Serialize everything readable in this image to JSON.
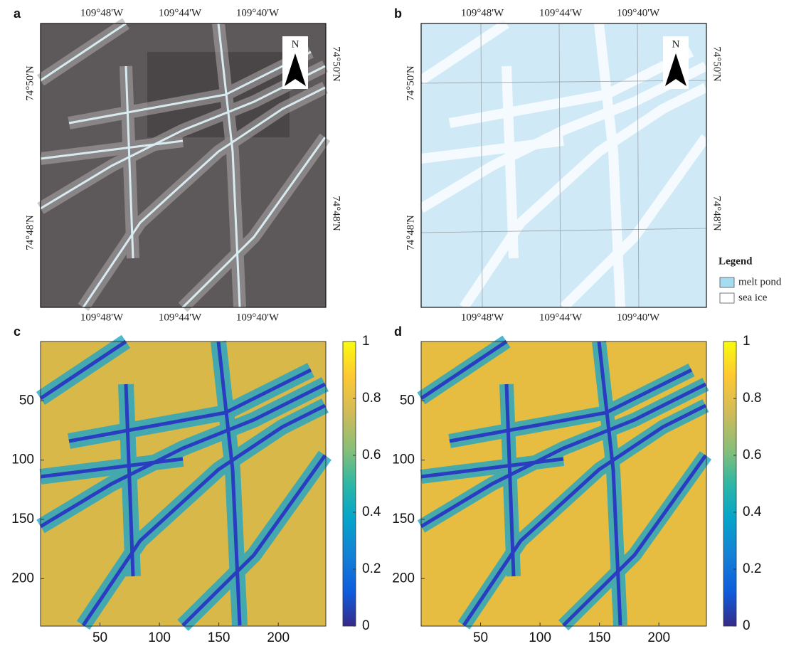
{
  "panels": [
    {
      "label": "a",
      "top_ticks": [
        "109°48'W",
        "109°44'W",
        "109°40'W"
      ],
      "bottom_ticks": [
        "109°48'W",
        "109°44'W",
        "109°40'W"
      ],
      "left_ticks": [
        "74°50'N",
        "74°48'N"
      ],
      "right_ticks": [
        "74°50'N",
        "74°48'N"
      ],
      "north": "N"
    },
    {
      "label": "b",
      "top_ticks": [
        "109°48'W",
        "109°44'W",
        "109°40'W"
      ],
      "bottom_ticks": [
        "109°48'W",
        "109°44'W",
        "109°40'W"
      ],
      "left_ticks": [
        "74°50'N",
        "74°48'N"
      ],
      "right_ticks": [
        "74°50'N",
        "74°48'N"
      ],
      "north": "N",
      "legend": {
        "title": "Legend",
        "items": [
          {
            "name": "melt pond",
            "color": "#a6dcf2"
          },
          {
            "name": "sea ice",
            "color": "#ffffff"
          }
        ]
      }
    },
    {
      "label": "c",
      "xlim": [
        0,
        240
      ],
      "ylim": [
        0,
        240
      ],
      "xticks": [
        50,
        100,
        150,
        200
      ],
      "yticks": [
        50,
        100,
        150,
        200
      ],
      "colorbar": {
        "lim": [
          0,
          1
        ],
        "ticks": [
          0,
          0.2,
          0.4,
          0.6,
          0.8,
          1
        ]
      }
    },
    {
      "label": "d",
      "xlim": [
        0,
        240
      ],
      "ylim": [
        0,
        240
      ],
      "xticks": [
        50,
        100,
        150,
        200
      ],
      "yticks": [
        50,
        100,
        150,
        200
      ],
      "colorbar": {
        "lim": [
          0,
          1
        ],
        "ticks": [
          0,
          0.2,
          0.4,
          0.6,
          0.8,
          1
        ]
      }
    }
  ]
}
